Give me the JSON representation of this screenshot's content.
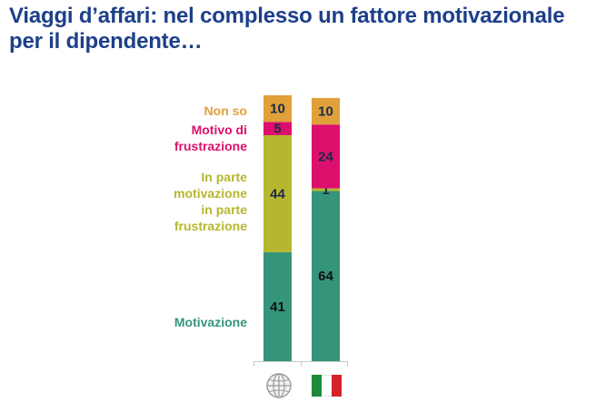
{
  "title": {
    "line1": "Viaggi d’affari: nel complesso un fattore motivazionale",
    "line2": "per il dipendente…"
  },
  "colors": {
    "title": "#1d3f8a",
    "non_so": "#e0a13a",
    "frustrazione": "#dc0f6c",
    "in_parte": "#b6b72e",
    "motivazione": "#34957a",
    "label_dark": "#1b2a4a"
  },
  "chart_data": {
    "type": "bar",
    "stacked": true,
    "unit": "%",
    "categories": [
      "globe-icon",
      "italy-flag-icon"
    ],
    "series": [
      {
        "name": "Motivazione",
        "values": [
          41,
          64
        ],
        "color": "#34957a"
      },
      {
        "name": "In parte motivazione in parte frustrazione",
        "values": [
          44,
          1
        ],
        "color": "#b6b72e"
      },
      {
        "name": "Motivo di frustrazione",
        "values": [
          5,
          24
        ],
        "color": "#dc0f6c"
      },
      {
        "name": "Non so",
        "values": [
          10,
          10
        ],
        "color": "#e0a13a"
      }
    ],
    "ylim": [
      0,
      100
    ],
    "legend": [
      {
        "key": "non_so",
        "lines": [
          "Non so"
        ]
      },
      {
        "key": "frustrazione",
        "lines": [
          "Motivo di",
          "frustrazione"
        ]
      },
      {
        "key": "in_parte",
        "lines": [
          "In parte",
          "motivazione",
          "in parte",
          "frustrazione"
        ]
      },
      {
        "key": "motivazione",
        "lines": [
          "Motivazione"
        ]
      }
    ]
  }
}
